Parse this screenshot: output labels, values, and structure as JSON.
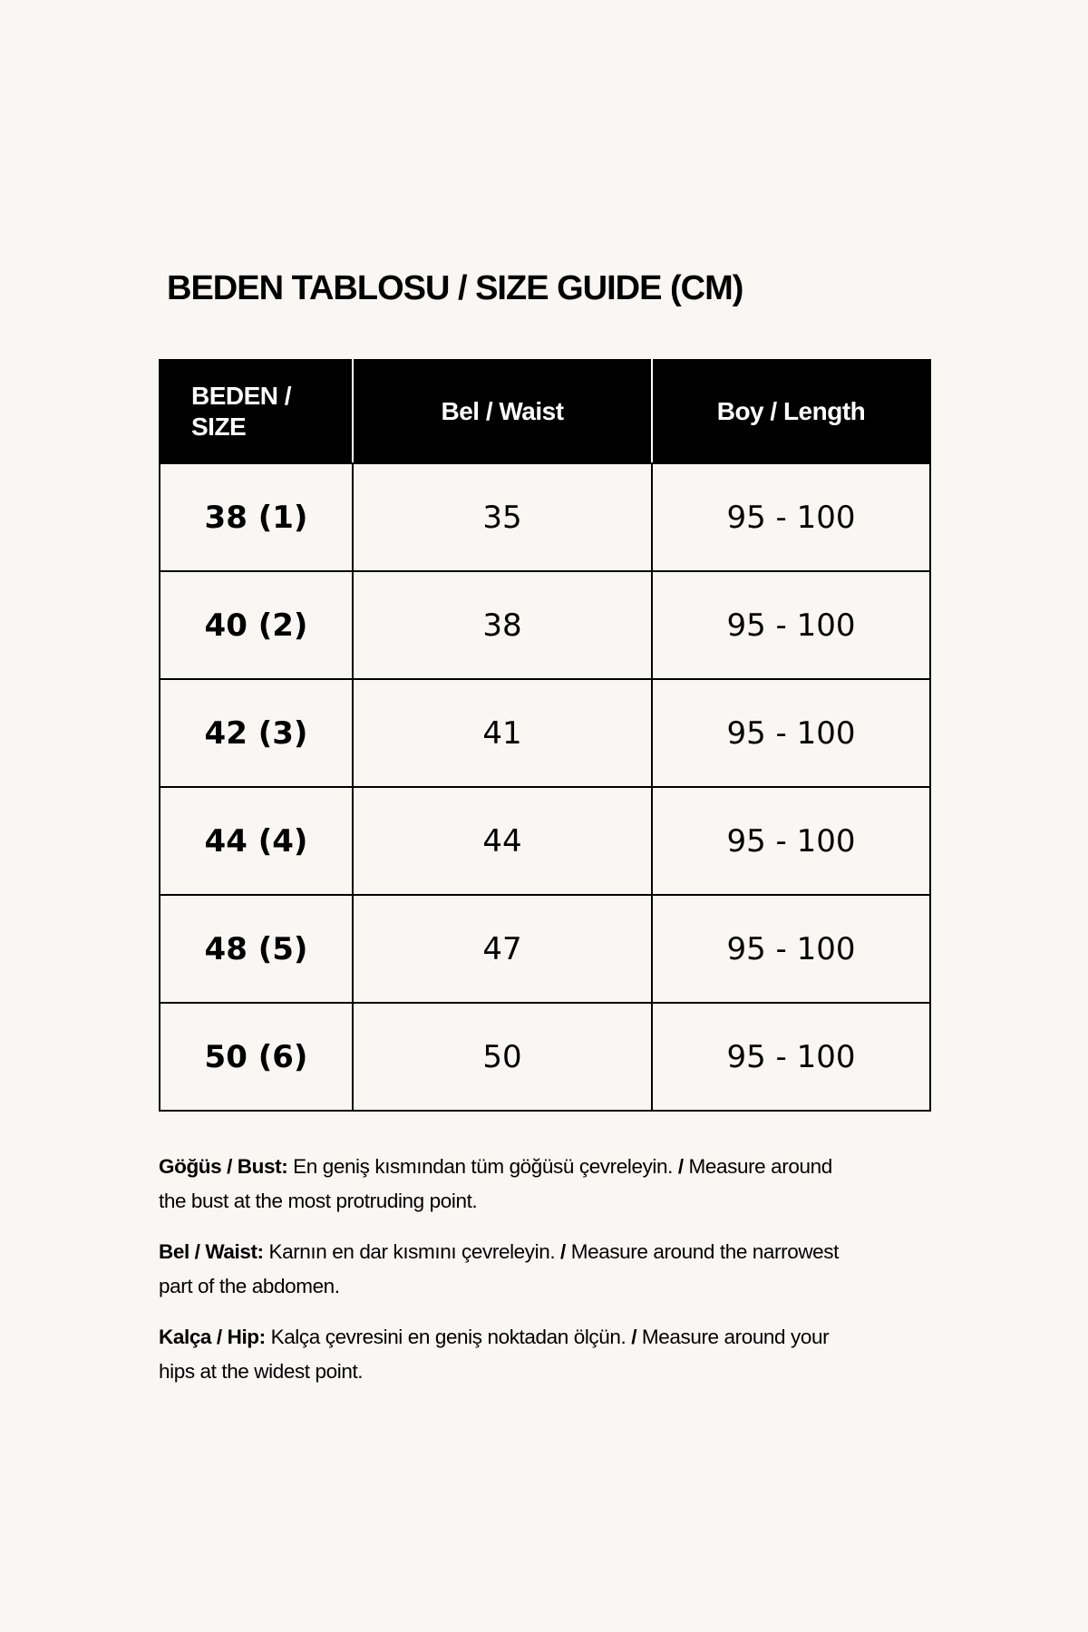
{
  "title": "BEDEN TABLOSU / SIZE GUIDE (CM)",
  "table": {
    "headers": [
      "BEDEN / SIZE",
      "Bel / Waist",
      "Boy / Length"
    ],
    "rows": [
      {
        "size": "38 (1)",
        "waist": "35",
        "length": "95 - 100"
      },
      {
        "size": "40 (2)",
        "waist": "38",
        "length": "95 - 100"
      },
      {
        "size": "42 (3)",
        "waist": "41",
        "length": "95 - 100"
      },
      {
        "size": "44 (4)",
        "waist": "44",
        "length": "95 - 100"
      },
      {
        "size": "48 (5)",
        "waist": "47",
        "length": "95 - 100"
      },
      {
        "size": "50 (6)",
        "waist": "50",
        "length": "95 - 100"
      }
    ]
  },
  "notes": [
    {
      "label": "Göğüs / Bust:",
      "tr": " En geniş kısmından tüm göğüsü çevreleyin. ",
      "sep": "/",
      "en": " Measure around the bust at the most protruding point."
    },
    {
      "label": "Bel / Waist:",
      "tr": " Karnın en dar kısmını çevreleyin. ",
      "sep": "/",
      "en": " Measure around the narrowest part of the abdomen."
    },
    {
      "label": "Kalça / Hip:",
      "tr": " Kalça çevresini en geniş noktadan ölçün. ",
      "sep": "/",
      "en": " Measure around your hips at the widest point."
    }
  ]
}
